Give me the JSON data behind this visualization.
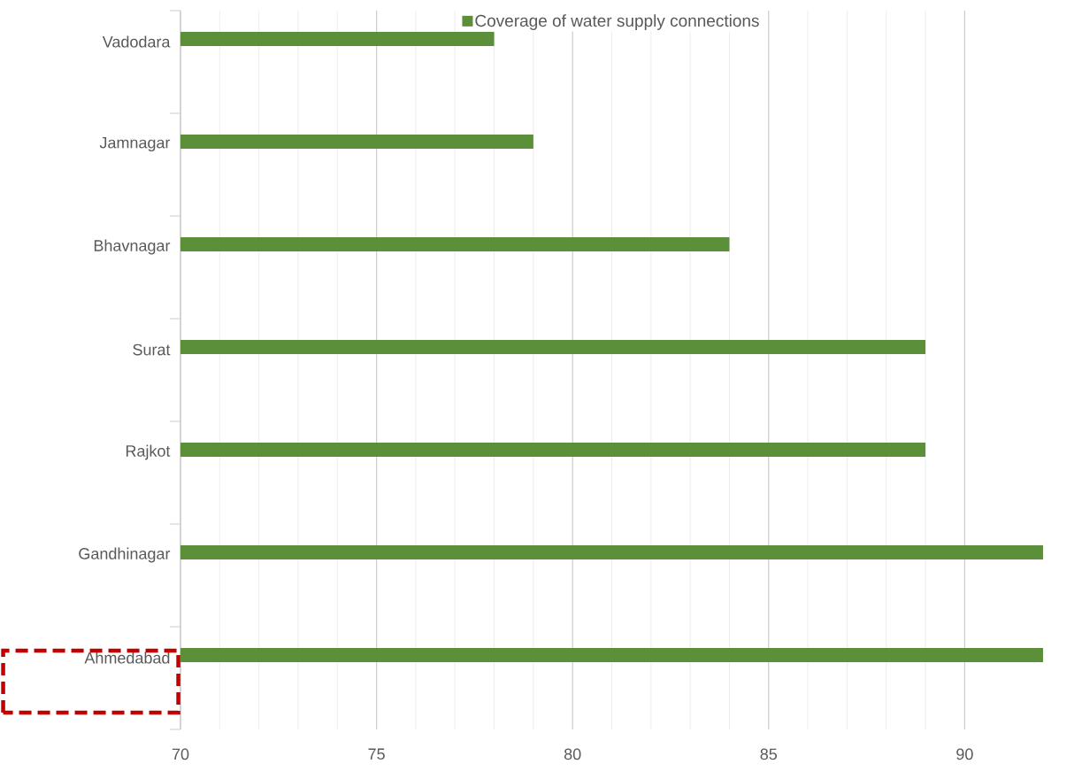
{
  "chart_data": {
    "type": "bar",
    "orientation": "horizontal",
    "categories": [
      "Vadodara",
      "Jamnagar",
      "Bhavnagar",
      "Surat",
      "Rajkot",
      "Gandhinagar",
      "Ahmedabad"
    ],
    "series": [
      {
        "name": "Coverage of water supply connections",
        "color": "#5b8f3a",
        "values": [
          78,
          79,
          84,
          89,
          89,
          92,
          92
        ]
      }
    ],
    "xlim": [
      70,
      92
    ],
    "xticks": [
      70,
      75,
      80,
      85,
      90
    ],
    "grid": "x",
    "legend": "top"
  }
}
